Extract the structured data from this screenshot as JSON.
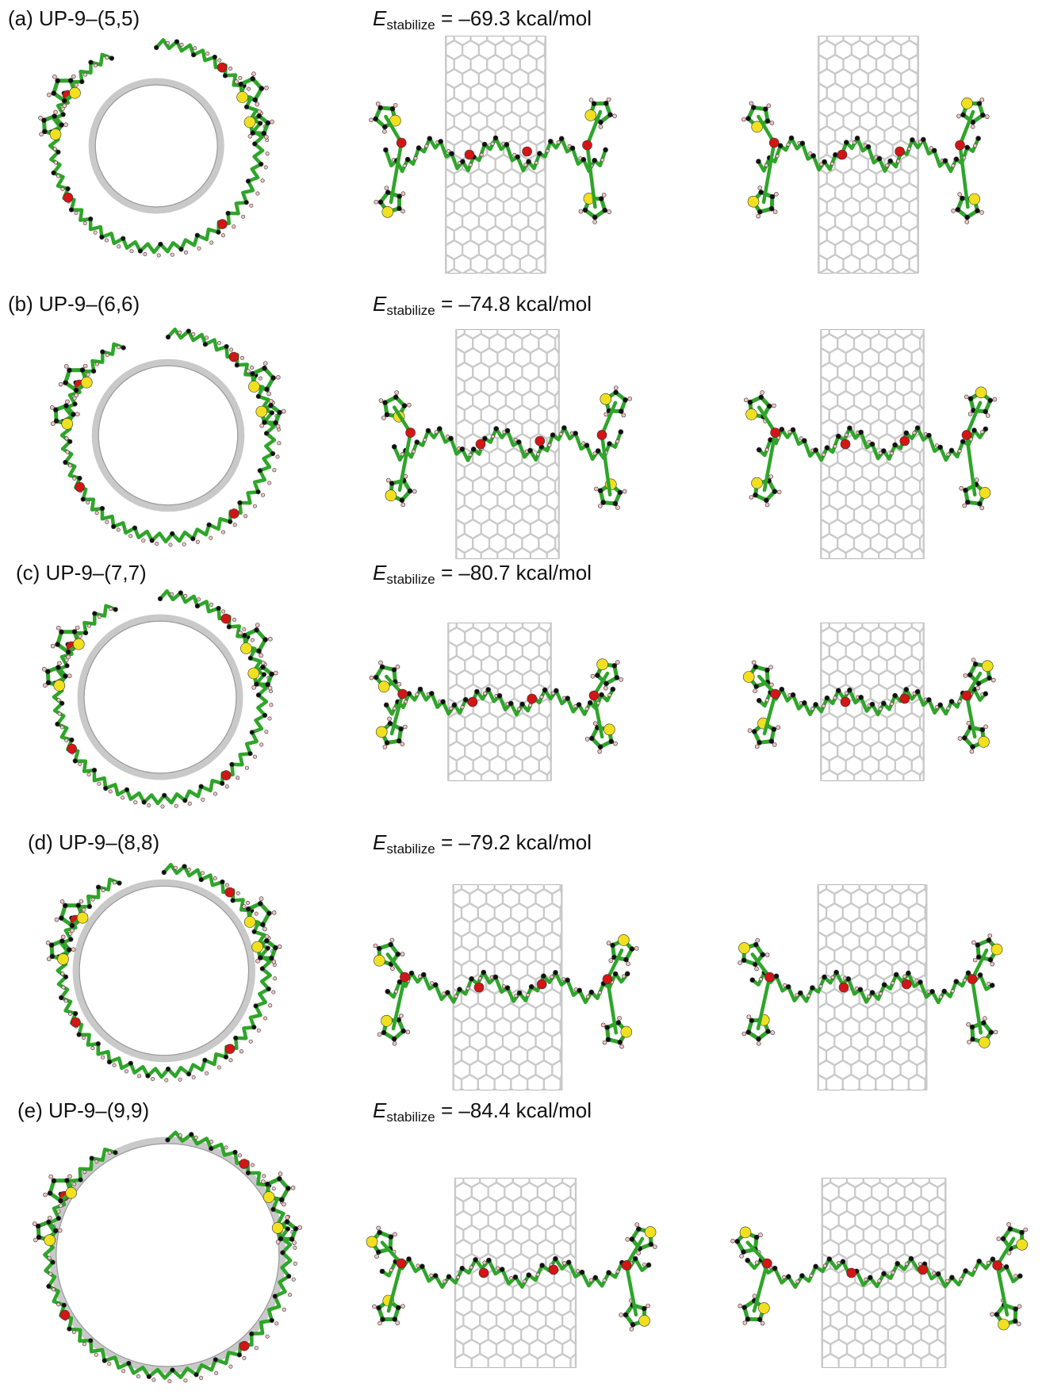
{
  "figure": {
    "panels": [
      {
        "label": "(a) UP-9–(5,5)",
        "energy_symbol": "E",
        "energy_sub": "stabilize",
        "energy_value": " = –69.3 kcal/mol",
        "ring": 0.3
      },
      {
        "label": "(b) UP-9–(6,6)",
        "energy_symbol": "E",
        "energy_sub": "stabilize",
        "energy_value": " = –74.8 kcal/mol",
        "ring": 0.34
      },
      {
        "label": "(c) UP-9–(7,7)",
        "energy_symbol": "E",
        "energy_sub": "stabilize",
        "energy_value": " = –80.7 kcal/mol",
        "ring": 0.37
      },
      {
        "label": "(d) UP-9–(8,8)",
        "energy_symbol": "E",
        "energy_sub": "stabilize",
        "energy_value": " = –79.2 kcal/mol",
        "ring": 0.41
      },
      {
        "label": "(e) UP-9–(9,9)",
        "energy_symbol": "E",
        "energy_sub": "stabilize",
        "energy_value": " = –84.4 kcal/mol",
        "ring": 0.46
      }
    ],
    "colors": {
      "carbon_chain": "#2fa52a",
      "carbon_atom": "#111111",
      "oxygen": "#d31515",
      "sulfur": "#f0e020",
      "hydrogen": "#f2c4c4",
      "nanotube": "#c9c9c9"
    }
  }
}
